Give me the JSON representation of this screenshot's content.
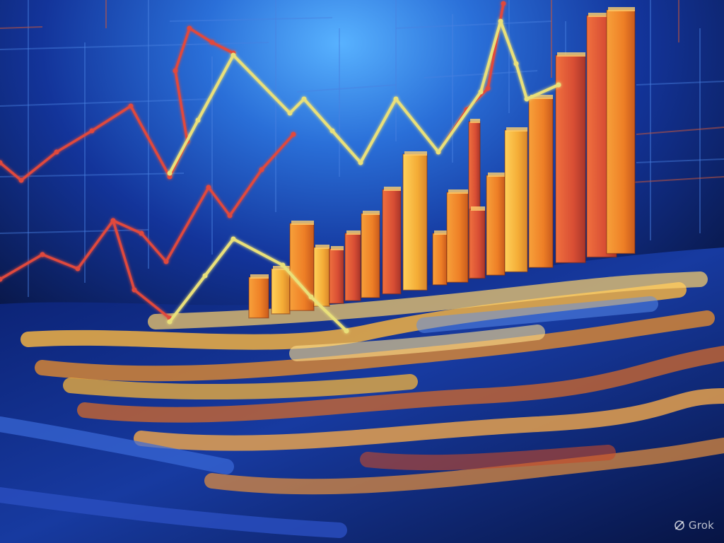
{
  "watermark": {
    "label": "Grok",
    "icon": "grok-logo-icon",
    "color": "#ffffffb8"
  },
  "palette": {
    "background_deep": "#061033",
    "background_mid": "#0e2a8c",
    "background_glow": "#3c8ff0",
    "bar_orange": "#f08a2a",
    "bar_yellow": "#f6b43a",
    "bar_red": "#d8503a",
    "line_red": "#e0483c",
    "line_yellow": "#e9e07a",
    "ground_gold": "#e8a23a",
    "ground_blue": "#1d3aa8"
  }
}
